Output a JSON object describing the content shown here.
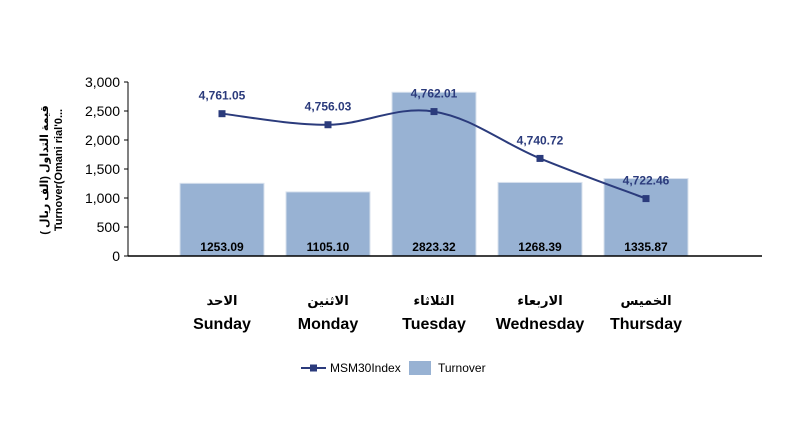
{
  "chart_data": {
    "type": "bar",
    "categories": [
      {
        "ar": "الاحد",
        "en": "Sunday"
      },
      {
        "ar": "الاثنين",
        "en": "Monday"
      },
      {
        "ar": "الثلاثاء",
        "en": "Tuesday"
      },
      {
        "ar": "الاربعاء",
        "en": "Wednesday"
      },
      {
        "ar": "الخميس",
        "en": "Thursday"
      }
    ],
    "ylabel_lines": [
      "( قيمة التداول (الف ريال",
      "Turnover(Omani rial'0..."
    ],
    "ylim": [
      0,
      3000
    ],
    "yticks": [
      0,
      500,
      1000,
      1500,
      2000,
      2500,
      3000
    ],
    "ytick_labels": [
      "0",
      "500",
      "1,000",
      "1,500",
      "2,000",
      "2,500",
      "3,000"
    ],
    "series": [
      {
        "name": "Turnover",
        "type": "bar",
        "values": [
          1253.09,
          1105.1,
          2823.32,
          1268.39,
          1335.87
        ],
        "labels": [
          "1253.09",
          "1105.10",
          "2823.32",
          "1268.39",
          "1335.87"
        ],
        "color": "#98b2d3"
      },
      {
        "name": "MSM30Index",
        "type": "line",
        "values": [
          4761.05,
          4756.03,
          4762.01,
          4740.72,
          4722.46
        ],
        "labels": [
          "4,761.05",
          "4,756.03",
          "4,762.01",
          "4,740.72",
          "4,722.46"
        ],
        "color": "#2b3b7c"
      }
    ],
    "legend": "bottom",
    "grid": false
  }
}
